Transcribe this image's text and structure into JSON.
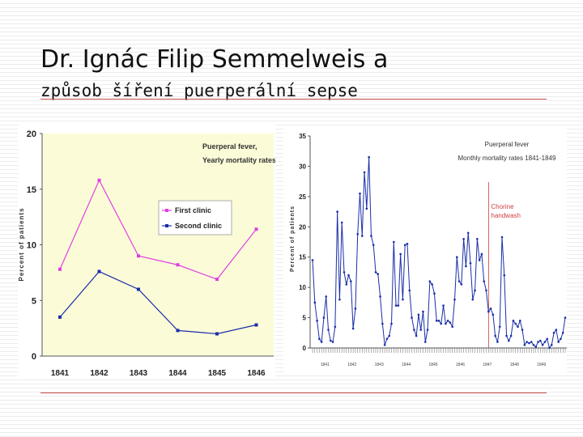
{
  "slide": {
    "title": "Dr. Ignác Filip Semmelweis a",
    "subtitle": "způsob šíření puerperální sepse"
  },
  "colors": {
    "first_clinic": "#e040e0",
    "second_clinic": "#1a2ea8",
    "chart1_plot_bg": "#fbfbd8",
    "chart2_line": "#1a2ea8",
    "annotation": "#d04040",
    "slide_rule": "#c84b4b"
  },
  "chart_data": [
    {
      "type": "line",
      "title": "Puerperal fever, Yearly mortality rates",
      "title_lines": [
        "Puerperal fever,",
        "Yearly mortality rates"
      ],
      "xlabel": "",
      "ylabel": "Percent of patients",
      "categories": [
        "1841",
        "1842",
        "1843",
        "1844",
        "1845",
        "1846"
      ],
      "yticks": [
        "0",
        "5",
        "10",
        "15",
        "20"
      ],
      "ylim": [
        0,
        20
      ],
      "legend": "center-right",
      "series": [
        {
          "name": "First clinic",
          "values": [
            7.8,
            15.8,
            9.0,
            8.2,
            6.9,
            11.4
          ]
        },
        {
          "name": "Second clinic",
          "values": [
            3.5,
            7.6,
            6.0,
            2.3,
            2.0,
            2.8
          ]
        }
      ]
    },
    {
      "type": "line",
      "title": "Puerperal fever Monthly mortality rates 1841-1849",
      "title_lines": [
        "Puerperal fever",
        "Monthly mortality rates 1841-1849"
      ],
      "xlabel": "",
      "ylabel": "Percent of patients",
      "ylim": [
        0,
        35
      ],
      "yticks": [
        "0",
        "5",
        "10",
        "15",
        "20",
        "25",
        "30",
        "35"
      ],
      "year_labels": [
        "1841",
        "1842",
        "1843",
        "1844",
        "1845",
        "1846",
        "1847",
        "1848",
        "1849"
      ],
      "annotation_lines": [
        "Chorine",
        "handwash"
      ],
      "annotation_x": 77,
      "series": [
        {
          "values": [
            14.5,
            7.5,
            4.5,
            1.5,
            1.0,
            5.0,
            8.5,
            3.0,
            1.2,
            1.0,
            3.5,
            22.5,
            8.0,
            20.7,
            12.5,
            10.5,
            12.0,
            11.0,
            3.2,
            6.5,
            18.8,
            25.5,
            18.5,
            29.0,
            23.0,
            31.5,
            18.5,
            17.0,
            12.5,
            12.2,
            8.5,
            4.0,
            0.5,
            1.5,
            2.0,
            4.0,
            17.5,
            7.0,
            7.0,
            15.5,
            8.0,
            17.0,
            17.2,
            9.5,
            5.0,
            3.0,
            2.0,
            5.5,
            3.0,
            6.0,
            1.0,
            3.0,
            11.0,
            10.5,
            9.0,
            4.5,
            4.5,
            4.0,
            7.0,
            4.0,
            4.5,
            4.2,
            3.5,
            8.0,
            15.0,
            11.0,
            10.5,
            18.0,
            13.5,
            19.0,
            14.0,
            8.0,
            9.5,
            18.0,
            14.5,
            15.5,
            11.0,
            9.5,
            6.0,
            6.5,
            5.5,
            2.0,
            1.0,
            3.5,
            18.3,
            12.0,
            2.0,
            1.2,
            2.0,
            4.5,
            4.0,
            3.5,
            4.5,
            3.0,
            0.5,
            1.0,
            0.8,
            1.0,
            0.5,
            0.2,
            1.0,
            1.2,
            0.5,
            1.0,
            1.5,
            0.0,
            0.5,
            2.5,
            3.0,
            1.0,
            1.5,
            2.5,
            5.0
          ]
        }
      ]
    }
  ]
}
